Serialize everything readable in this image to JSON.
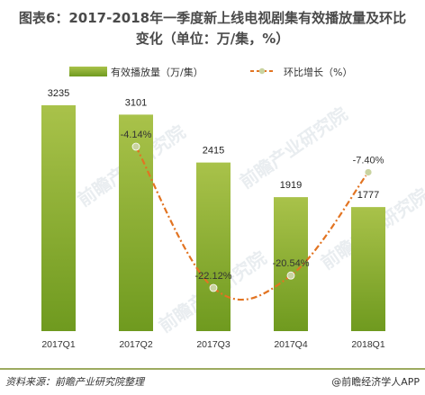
{
  "title_line1": "图表6：2017-2018年一季度新上线电视剧集有效播放量及环比",
  "title_line2": "变化（单位：万/集，%）",
  "footer": {
    "source": "资料来源：前瞻产业研究院整理",
    "brand": "@前瞻经济学人APP"
  },
  "watermark": "前瞻产业研究院",
  "colors": {
    "bar_top": "#a9c24a",
    "bar_bottom": "#6f9a1f",
    "line": "#e27422",
    "marker": "#c9d3a0",
    "footer_line": "#7d8f2b"
  },
  "chart_data": {
    "type": "bar",
    "categories": [
      "2017Q1",
      "2017Q2",
      "2017Q3",
      "2017Q4",
      "2018Q1"
    ],
    "series": [
      {
        "name": "有效播放量（万/集）",
        "type": "bar",
        "values": [
          3235,
          3101,
          2415,
          1919,
          1777
        ],
        "labels": [
          "3235",
          "3101",
          "2415",
          "1919",
          "1777"
        ]
      },
      {
        "name": "环比增长（%）",
        "type": "line",
        "values": [
          null,
          -4.14,
          -22.12,
          -20.54,
          -7.4
        ],
        "labels": [
          "",
          "-4.14%",
          "-22.12%",
          "-20.54%",
          "-7.40%"
        ]
      }
    ],
    "legend": "top",
    "grid": false
  }
}
